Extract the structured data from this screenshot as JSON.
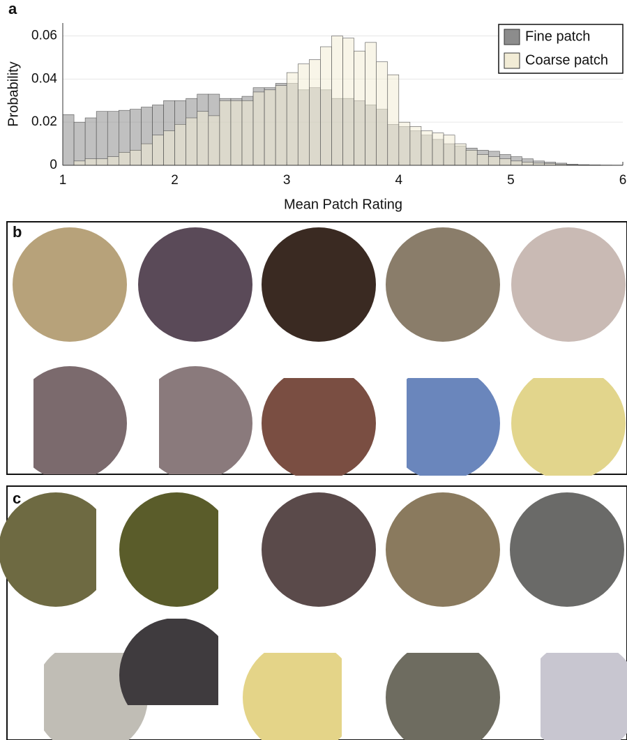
{
  "chart_data": {
    "type": "histogram",
    "panel_label": "a",
    "xlabel": "Mean Patch Rating",
    "ylabel": "Probability",
    "bins": [
      1.0,
      1.1,
      1.2,
      1.3,
      1.4,
      1.5,
      1.6,
      1.7,
      1.8,
      1.9,
      2.0,
      2.1,
      2.2,
      2.3,
      2.4,
      2.5,
      2.6,
      2.7,
      2.8,
      2.9,
      3.0,
      3.1,
      3.2,
      3.3,
      3.4,
      3.5,
      3.6,
      3.7,
      3.8,
      3.9,
      4.0,
      4.1,
      4.2,
      4.3,
      4.4,
      4.5,
      4.6,
      4.7,
      4.8,
      4.9,
      5.0,
      5.1,
      5.2,
      5.3,
      5.4,
      5.5,
      5.6,
      5.7,
      5.8,
      5.9,
      6.0
    ],
    "series": [
      {
        "name": "Fine patch",
        "color": "#8c8c8c",
        "values": [
          0.0235,
          0.02,
          0.022,
          0.025,
          0.025,
          0.0255,
          0.026,
          0.027,
          0.028,
          0.03,
          0.03,
          0.031,
          0.033,
          0.033,
          0.031,
          0.031,
          0.032,
          0.036,
          0.036,
          0.038,
          0.038,
          0.035,
          0.036,
          0.035,
          0.031,
          0.031,
          0.03,
          0.028,
          0.026,
          0.019,
          0.018,
          0.016,
          0.014,
          0.012,
          0.01,
          0.009,
          0.008,
          0.007,
          0.0065,
          0.005,
          0.004,
          0.003,
          0.002,
          0.0015,
          0.001,
          0.0005,
          0.0003,
          0.0002,
          0.0001,
          0.0001
        ]
      },
      {
        "name": "Coarse patch",
        "color": "#f2ecd6",
        "values": [
          0.0,
          0.002,
          0.003,
          0.003,
          0.004,
          0.006,
          0.007,
          0.01,
          0.014,
          0.016,
          0.019,
          0.022,
          0.025,
          0.023,
          0.03,
          0.03,
          0.03,
          0.034,
          0.035,
          0.037,
          0.043,
          0.047,
          0.049,
          0.055,
          0.06,
          0.059,
          0.053,
          0.057,
          0.048,
          0.042,
          0.02,
          0.018,
          0.016,
          0.015,
          0.014,
          0.01,
          0.007,
          0.005,
          0.004,
          0.003,
          0.002,
          0.0015,
          0.001,
          0.0008,
          0.0005,
          0.0003,
          0.0002,
          0.0001,
          0.0001,
          0.0
        ]
      }
    ],
    "xlim": [
      1,
      6
    ],
    "ylim": [
      0,
      0.066
    ],
    "xticks": [
      1,
      2,
      3,
      4,
      5,
      6
    ],
    "yticks": [
      0,
      0.02,
      0.04,
      0.06
    ],
    "grid": true,
    "legend": "upper right"
  },
  "panels": [
    {
      "label": "b"
    },
    {
      "label": "c"
    }
  ]
}
